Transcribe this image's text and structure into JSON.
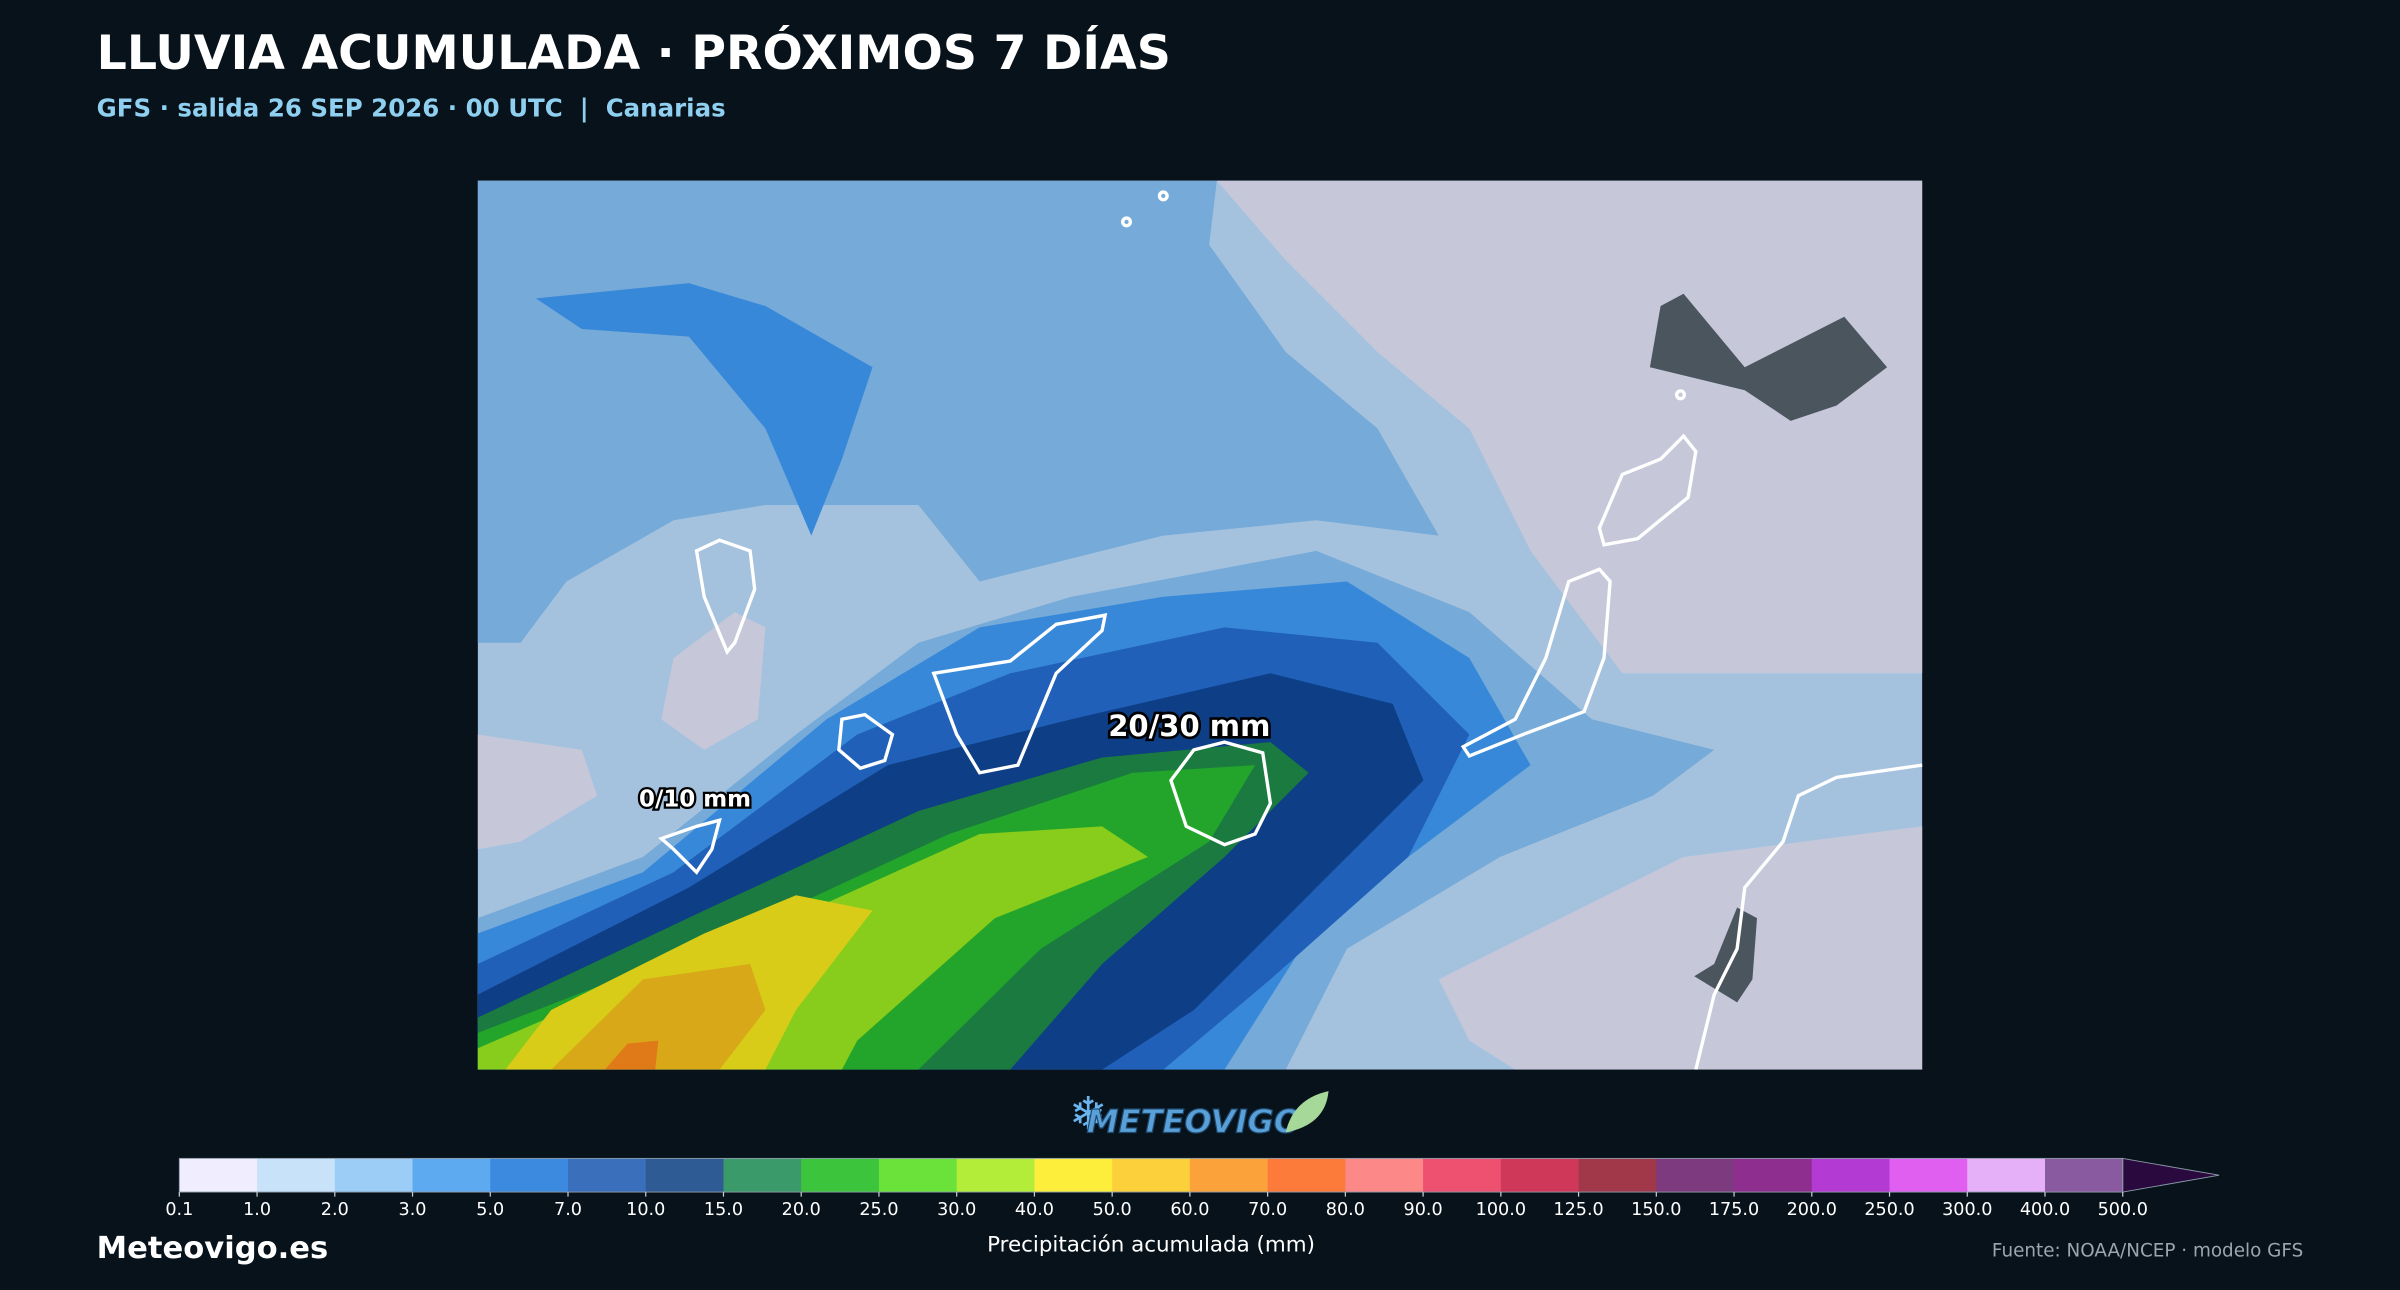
{
  "header": {
    "title": "LLUVIA ACUMULADA · PRÓXIMOS 7 DÍAS",
    "subtitle": "GFS · salida 26 SEP 2026 · 00 UTC  |  Canarias"
  },
  "map": {
    "labels": [
      "0/10 mm",
      "20/30 mm"
    ]
  },
  "logo": "METEOVIGO",
  "colorbar": {
    "ticks": [
      "0.1",
      "1.0",
      "2.0",
      "3.0",
      "5.0",
      "7.0",
      "10.0",
      "15.0",
      "20.0",
      "25.0",
      "30.0",
      "40.0",
      "50.0",
      "60.0",
      "70.0",
      "80.0",
      "90.0",
      "100.0",
      "125.0",
      "150.0",
      "175.0",
      "200.0",
      "250.0",
      "300.0",
      "400.0",
      "500.0"
    ],
    "colors": [
      "#f0eefe",
      "#c8e2fa",
      "#9ccdf7",
      "#5eaaf0",
      "#3c8ae0",
      "#3a6fbb",
      "#2f5b95",
      "#3a9a6a",
      "#3cc43c",
      "#6ae23a",
      "#b4ec3a",
      "#fcee3a",
      "#fcd03a",
      "#fca23a",
      "#fc7a3a",
      "#fc8888",
      "#ee5070",
      "#d0385a",
      "#a0384a",
      "#7e3a7e",
      "#8e2e8e",
      "#b43ad4",
      "#e05ef0",
      "#e6b0f8",
      "#8a5aa0"
    ],
    "extend_color": "#2a0a3e",
    "label": "Precipitación acumulada (mm)"
  },
  "footer": {
    "site": "Meteovigo.es",
    "source": "Fuente: NOAA/NCEP · modelo GFS"
  }
}
